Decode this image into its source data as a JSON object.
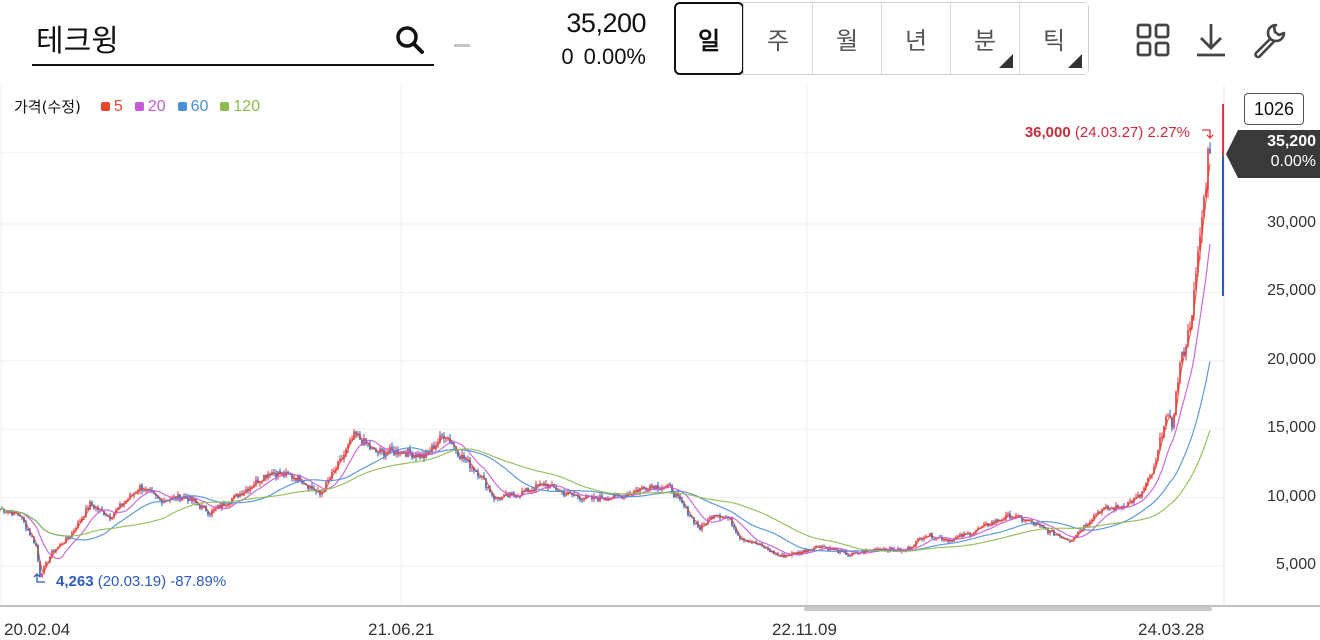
{
  "search": {
    "value": "테크윙"
  },
  "quote": {
    "price": "35,200",
    "change": "0",
    "change_pct": "0.00%"
  },
  "period_tabs": [
    {
      "label": "일",
      "active": true,
      "has_menu": false
    },
    {
      "label": "주",
      "active": false,
      "has_menu": false
    },
    {
      "label": "월",
      "active": false,
      "has_menu": false
    },
    {
      "label": "년",
      "active": false,
      "has_menu": false
    },
    {
      "label": "분",
      "active": false,
      "has_menu": true
    },
    {
      "label": "틱",
      "active": false,
      "has_menu": true
    }
  ],
  "toolbar_icons": [
    "grid-layout-icon",
    "download-icon",
    "wrench-icon"
  ],
  "chart_data": {
    "type": "candlestick",
    "legend_title": "가격(수정)",
    "moving_averages": [
      {
        "name": "5",
        "color": "#e8472c"
      },
      {
        "name": "20",
        "color": "#c65ad8"
      },
      {
        "name": "60",
        "color": "#4e8fd9"
      },
      {
        "name": "120",
        "color": "#8dbb4e"
      }
    ],
    "up_color": "#e4343f",
    "down_color": "#2a5cc0",
    "candle_count": "1026",
    "y_ticks": [
      "35,200",
      "30,000",
      "25,000",
      "20,000",
      "15,000",
      "10,000",
      "5,000"
    ],
    "y_tick_values": [
      30000,
      25000,
      20000,
      15000,
      10000,
      5000
    ],
    "ylim": [
      2300,
      39500
    ],
    "x_ticks": [
      "20.02.04",
      "21.06.21",
      "22.11.09",
      "24.03.28"
    ],
    "last": {
      "price": "35,200",
      "pct": "0.00%"
    },
    "high": {
      "value": "36,000",
      "date": "(24.03.27)",
      "pct": "2.27%"
    },
    "low": {
      "value": "4,263",
      "date": "(20.03.19)",
      "pct": "-87.89%"
    },
    "price_path": [
      [
        0,
        9200
      ],
      [
        20,
        8700
      ],
      [
        36,
        6500
      ],
      [
        40,
        4263
      ],
      [
        52,
        6000
      ],
      [
        70,
        7200
      ],
      [
        90,
        9500
      ],
      [
        110,
        8600
      ],
      [
        140,
        10800
      ],
      [
        160,
        9800
      ],
      [
        185,
        10100
      ],
      [
        210,
        8900
      ],
      [
        240,
        10300
      ],
      [
        270,
        11900
      ],
      [
        300,
        11400
      ],
      [
        320,
        10200
      ],
      [
        340,
        12600
      ],
      [
        355,
        14600
      ],
      [
        375,
        13300
      ],
      [
        400,
        13400
      ],
      [
        425,
        13000
      ],
      [
        445,
        14700
      ],
      [
        460,
        13100
      ],
      [
        480,
        11700
      ],
      [
        495,
        9900
      ],
      [
        520,
        10300
      ],
      [
        545,
        11000
      ],
      [
        565,
        10300
      ],
      [
        590,
        9900
      ],
      [
        620,
        10100
      ],
      [
        650,
        10900
      ],
      [
        670,
        10700
      ],
      [
        690,
        8700
      ],
      [
        700,
        7700
      ],
      [
        715,
        8900
      ],
      [
        730,
        8400
      ],
      [
        740,
        7100
      ],
      [
        760,
        6500
      ],
      [
        780,
        5700
      ],
      [
        800,
        6000
      ],
      [
        820,
        6500
      ],
      [
        850,
        5800
      ],
      [
        880,
        6300
      ],
      [
        905,
        6100
      ],
      [
        925,
        7300
      ],
      [
        950,
        6900
      ],
      [
        970,
        7400
      ],
      [
        990,
        8100
      ],
      [
        1010,
        8700
      ],
      [
        1030,
        8200
      ],
      [
        1050,
        7500
      ],
      [
        1070,
        6900
      ],
      [
        1085,
        8000
      ],
      [
        1100,
        9100
      ],
      [
        1120,
        9300
      ],
      [
        1140,
        10100
      ],
      [
        1155,
        12200
      ],
      [
        1165,
        15900
      ],
      [
        1172,
        15300
      ],
      [
        1180,
        19700
      ],
      [
        1188,
        21900
      ],
      [
        1195,
        25200
      ],
      [
        1200,
        29200
      ],
      [
        1205,
        32300
      ],
      [
        1209,
        36000
      ],
      [
        1211,
        35200
      ]
    ]
  }
}
